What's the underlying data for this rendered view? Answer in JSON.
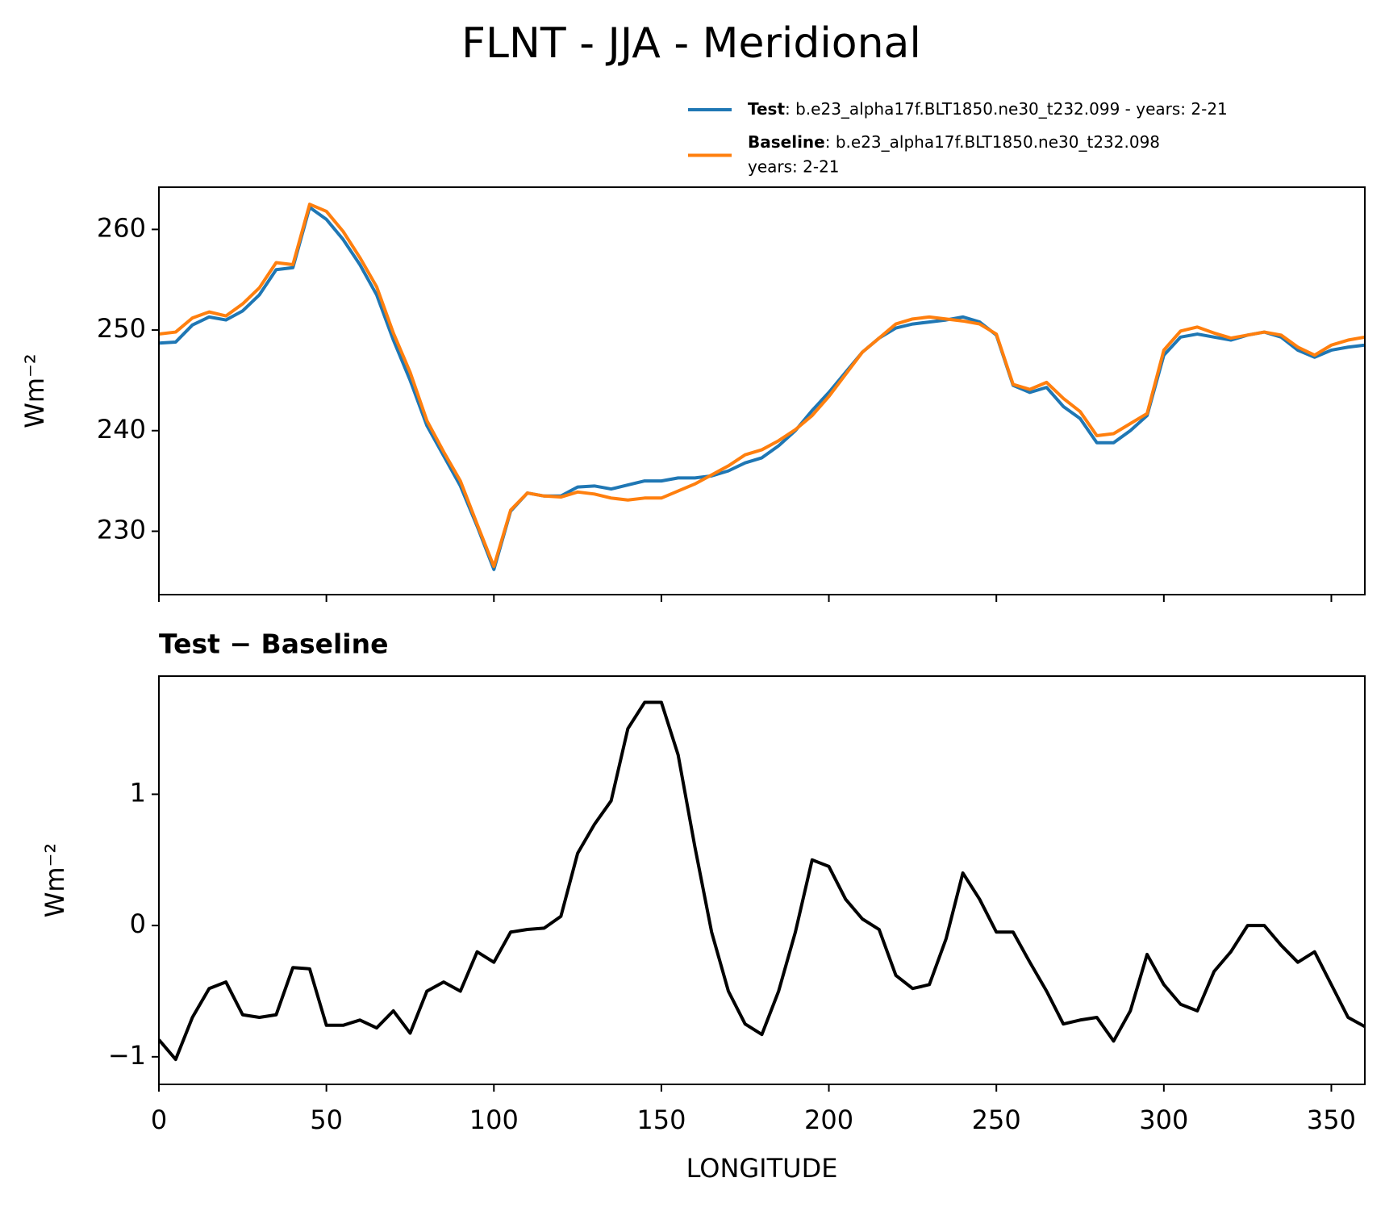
{
  "title": "FLNT - JJA - Meridional",
  "chart_data": [
    {
      "type": "line",
      "ylabel": "Wm⁻²",
      "x": [
        0,
        5,
        10,
        15,
        20,
        25,
        30,
        35,
        40,
        45,
        50,
        55,
        60,
        65,
        70,
        75,
        80,
        85,
        90,
        95,
        100,
        105,
        110,
        115,
        120,
        125,
        130,
        135,
        140,
        145,
        150,
        155,
        160,
        165,
        170,
        175,
        180,
        185,
        190,
        195,
        200,
        205,
        210,
        215,
        220,
        225,
        230,
        235,
        240,
        245,
        250,
        255,
        260,
        265,
        270,
        275,
        280,
        285,
        290,
        295,
        300,
        305,
        310,
        315,
        320,
        325,
        330,
        335,
        340,
        345,
        350,
        355,
        360
      ],
      "xlim": [
        0,
        360
      ],
      "ylim": [
        223.7,
        264.2
      ],
      "yticks": [
        230,
        240,
        250,
        260
      ],
      "series": [
        {
          "name": "Test",
          "description": [
            ": b.e23_alpha17f.BLT1850.ne30_t232.099 - years: 2-21"
          ],
          "color": "#1f77b4",
          "values": [
            248.7,
            248.8,
            250.5,
            251.3,
            251.0,
            251.9,
            253.5,
            256.0,
            256.2,
            262.2,
            261.0,
            259.0,
            256.5,
            253.5,
            249.0,
            245.0,
            240.5,
            237.5,
            234.5,
            230.5,
            226.2,
            232.0,
            233.8,
            233.5,
            233.5,
            234.4,
            234.5,
            234.2,
            234.6,
            235.0,
            235.0,
            235.3,
            235.3,
            235.5,
            236.0,
            236.8,
            237.3,
            238.5,
            240.0,
            242.0,
            243.8,
            245.8,
            247.8,
            249.2,
            250.2,
            250.6,
            250.8,
            251.0,
            251.3,
            250.8,
            249.5,
            244.5,
            243.8,
            244.3,
            242.4,
            241.2,
            238.8,
            238.8,
            240.0,
            241.5,
            247.5,
            249.3,
            249.6,
            249.3,
            249.0,
            249.5,
            249.8,
            249.3,
            248.0,
            247.3,
            248.0,
            248.3,
            248.5
          ]
        },
        {
          "name": "Baseline",
          "description": [
            ": b.e23_alpha17f.BLT1850.ne30_t232.098",
            "years: 2-21"
          ],
          "color": "#ff7f0e",
          "values": [
            249.6,
            249.8,
            251.2,
            251.8,
            251.4,
            252.6,
            254.2,
            256.7,
            256.5,
            262.5,
            261.8,
            259.8,
            257.2,
            254.3,
            249.7,
            245.8,
            241.0,
            237.9,
            235.0,
            230.7,
            226.5,
            232.1,
            233.8,
            233.5,
            233.4,
            233.9,
            233.7,
            233.3,
            233.1,
            233.3,
            233.3,
            234.0,
            234.7,
            235.6,
            236.5,
            237.6,
            238.1,
            239.0,
            240.1,
            241.5,
            243.4,
            245.6,
            247.8,
            249.2,
            250.6,
            251.1,
            251.3,
            251.1,
            250.9,
            250.6,
            249.6,
            244.6,
            244.1,
            244.8,
            243.2,
            241.9,
            239.5,
            239.7,
            240.7,
            241.7,
            248.0,
            249.9,
            250.3,
            249.7,
            249.2,
            249.5,
            249.8,
            249.5,
            248.3,
            247.5,
            248.5,
            249.0,
            249.3
          ]
        }
      ]
    },
    {
      "type": "line",
      "title": "Test − Baseline",
      "xlabel": "LONGITUDE",
      "ylabel": "Wm⁻²",
      "x": [
        0,
        5,
        10,
        15,
        20,
        25,
        30,
        35,
        40,
        45,
        50,
        55,
        60,
        65,
        70,
        75,
        80,
        85,
        90,
        95,
        100,
        105,
        110,
        115,
        120,
        125,
        130,
        135,
        140,
        145,
        150,
        155,
        160,
        165,
        170,
        175,
        180,
        185,
        190,
        195,
        200,
        205,
        210,
        215,
        220,
        225,
        230,
        235,
        240,
        245,
        250,
        255,
        260,
        265,
        270,
        275,
        280,
        285,
        290,
        295,
        300,
        305,
        310,
        315,
        320,
        325,
        330,
        335,
        340,
        345,
        350,
        355,
        360
      ],
      "xlim": [
        0,
        360
      ],
      "xticks": [
        0,
        50,
        100,
        150,
        200,
        250,
        300,
        350
      ],
      "ylim": [
        -1.21,
        1.9
      ],
      "yticks": [
        {
          "value": -1,
          "label": "−1"
        },
        0,
        1
      ],
      "series": [
        {
          "color": "#000000",
          "values": [
            -0.87,
            -1.02,
            -0.7,
            -0.48,
            -0.43,
            -0.68,
            -0.7,
            -0.68,
            -0.32,
            -0.33,
            -0.76,
            -0.76,
            -0.72,
            -0.78,
            -0.65,
            -0.82,
            -0.5,
            -0.43,
            -0.5,
            -0.2,
            -0.28,
            -0.05,
            -0.03,
            -0.02,
            0.07,
            0.55,
            0.77,
            0.95,
            1.5,
            1.7,
            1.7,
            1.3,
            0.6,
            -0.05,
            -0.5,
            -0.75,
            -0.83,
            -0.5,
            -0.05,
            0.5,
            0.45,
            0.2,
            0.05,
            -0.03,
            -0.38,
            -0.48,
            -0.45,
            -0.1,
            0.4,
            0.2,
            -0.05,
            -0.05,
            -0.28,
            -0.5,
            -0.75,
            -0.72,
            -0.7,
            -0.88,
            -0.65,
            -0.22,
            -0.45,
            -0.6,
            -0.65,
            -0.35,
            -0.2,
            0,
            0,
            -0.15,
            -0.28,
            -0.2,
            -0.45,
            -0.7,
            -0.77
          ]
        }
      ]
    }
  ]
}
